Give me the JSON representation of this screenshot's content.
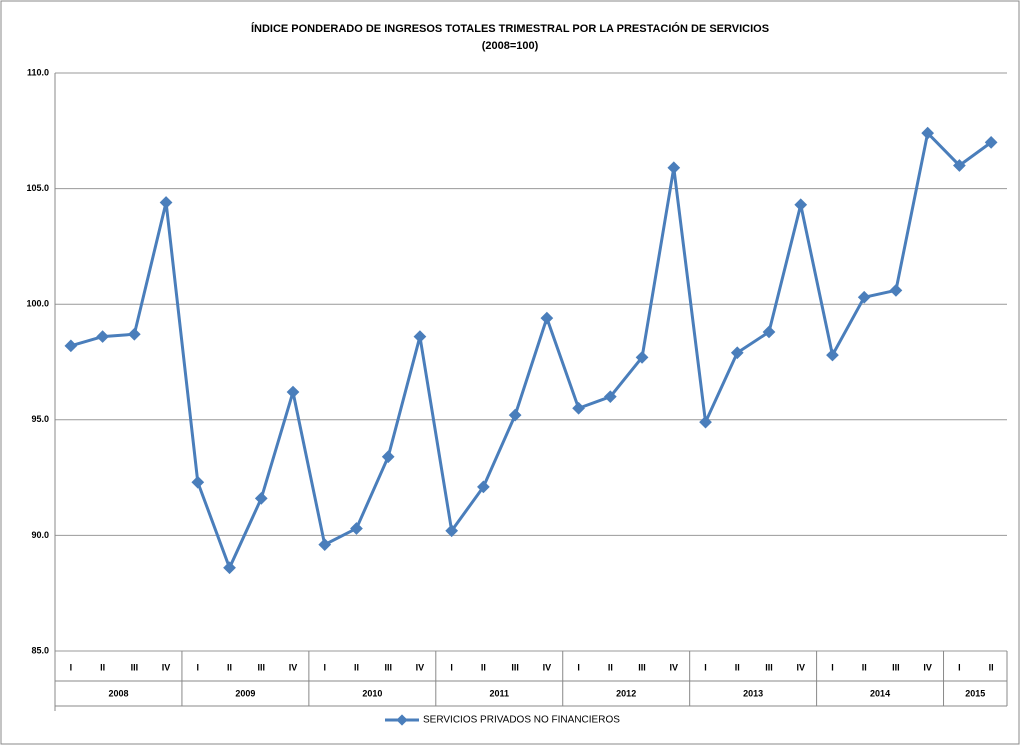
{
  "chart_data": {
    "type": "line",
    "title": "ÍNDICE PONDERADO DE INGRESOS TOTALES TRIMESTRAL POR LA PRESTACIÓN DE SERVICIOS",
    "subtitle": "(2008=100)",
    "groups": [
      {
        "label": "2008",
        "quarters": [
          "I",
          "II",
          "III",
          "IV"
        ]
      },
      {
        "label": "2009",
        "quarters": [
          "I",
          "II",
          "III",
          "IV"
        ]
      },
      {
        "label": "2010",
        "quarters": [
          "I",
          "II",
          "III",
          "IV"
        ]
      },
      {
        "label": "2011",
        "quarters": [
          "I",
          "II",
          "III",
          "IV"
        ]
      },
      {
        "label": "2012",
        "quarters": [
          "I",
          "II",
          "III",
          "IV"
        ]
      },
      {
        "label": "2013",
        "quarters": [
          "I",
          "II",
          "III",
          "IV"
        ]
      },
      {
        "label": "2014",
        "quarters": [
          "I",
          "II",
          "III",
          "IV"
        ]
      },
      {
        "label": "2015",
        "quarters": [
          "I",
          "II"
        ]
      }
    ],
    "series": [
      {
        "name": "SERVICIOS PRIVADOS NO FINANCIEROS",
        "color": "#4a7ebb",
        "values": [
          98.2,
          98.6,
          98.7,
          104.4,
          92.3,
          88.6,
          91.6,
          96.2,
          89.6,
          90.3,
          93.4,
          98.6,
          90.2,
          92.1,
          95.2,
          99.4,
          95.5,
          96.0,
          97.7,
          105.9,
          94.9,
          97.9,
          98.8,
          104.3,
          97.8,
          100.3,
          100.6,
          107.4,
          106.0,
          107.0
        ]
      }
    ],
    "ylim": [
      85,
      110
    ],
    "yticks": [
      {
        "value": 85,
        "label": "85.0"
      },
      {
        "value": 90,
        "label": "90.0"
      },
      {
        "value": 95,
        "label": "95.0"
      },
      {
        "value": 100,
        "label": "100.0"
      },
      {
        "value": 105,
        "label": "105.0"
      },
      {
        "value": 110,
        "label": "110.0"
      }
    ],
    "grid": true
  }
}
